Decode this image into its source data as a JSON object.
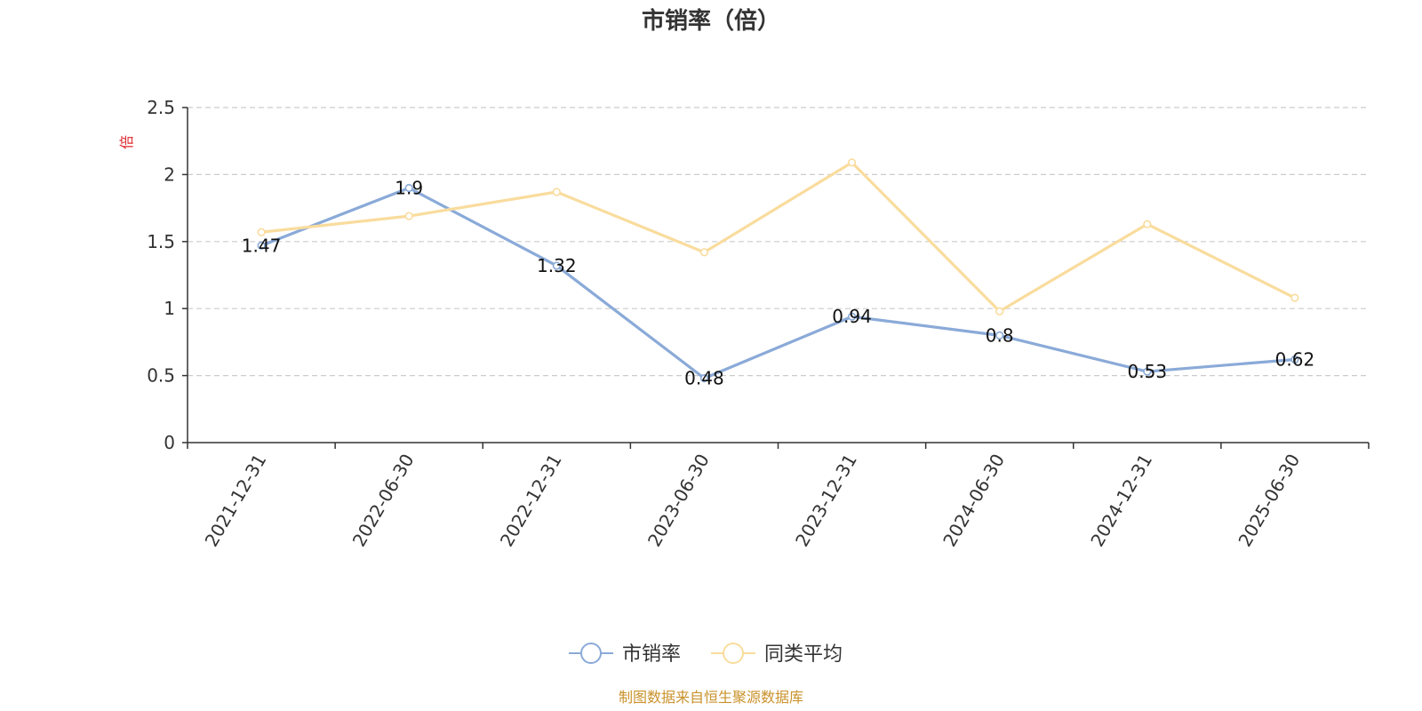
{
  "colors": {
    "series1": "#8aaad8",
    "series2": "#f9dc9d",
    "unit": "#e0282e",
    "source": "#c9922b",
    "grid": "#cccccc",
    "axis": "#333333"
  },
  "footer": {
    "source": "制图数据来自恒生聚源数据库"
  },
  "chart_data": {
    "type": "line",
    "title": "市销率（倍）",
    "ylabel": "倍",
    "ylim": [
      0,
      2.5
    ],
    "yticks": [
      "0",
      "0.5",
      "1",
      "1.5",
      "2",
      "2.5"
    ],
    "grid": "horizontal dashed",
    "legend_position": "bottom",
    "categories": [
      "2021-12-31",
      "2022-06-30",
      "2022-12-31",
      "2023-06-30",
      "2023-12-31",
      "2024-06-30",
      "2024-12-31",
      "2025-06-30"
    ],
    "series": [
      {
        "name": "市销率",
        "values": [
          1.47,
          1.9,
          1.32,
          0.48,
          0.94,
          0.8,
          0.53,
          0.62
        ],
        "labels": [
          "1.47",
          "1.9",
          "1.32",
          "0.48",
          "0.94",
          "0.8",
          "0.53",
          "0.62"
        ]
      },
      {
        "name": "同类平均",
        "values": [
          1.57,
          1.69,
          1.87,
          1.42,
          2.09,
          0.98,
          1.63,
          1.08
        ]
      }
    ]
  }
}
